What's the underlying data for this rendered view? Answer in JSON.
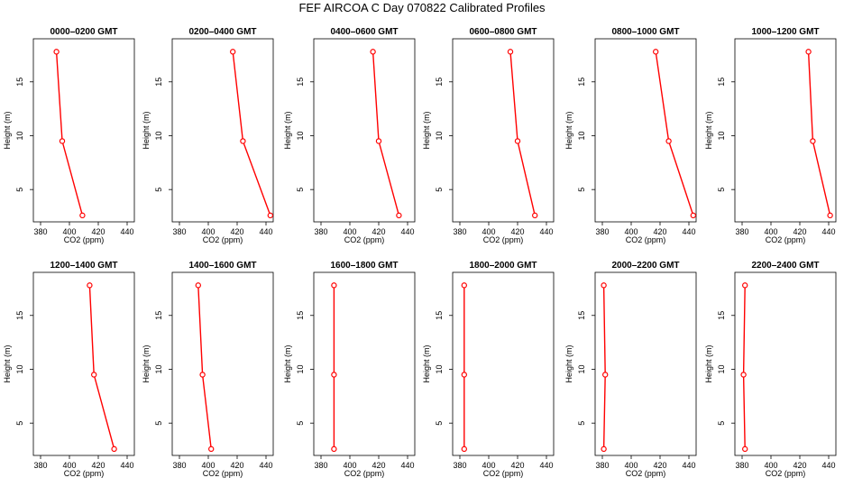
{
  "figure": {
    "title": "FEF AIRCOA C  Day 070822  Calibrated Profiles"
  },
  "chart_data": [
    {
      "type": "line",
      "title": "0000–0200 GMT",
      "xlabel": "CO2 (ppm)",
      "ylabel": "Height (m)",
      "xlim": [
        375,
        445
      ],
      "ylim": [
        2,
        19
      ],
      "xticks": [
        380,
        400,
        420,
        440
      ],
      "yticks": [
        5,
        10,
        15
      ],
      "color": "#ff0000",
      "points": [
        {
          "x": 391,
          "y": 17.8
        },
        {
          "x": 395,
          "y": 9.5
        },
        {
          "x": 409,
          "y": 2.6
        }
      ]
    },
    {
      "type": "line",
      "title": "0200–0400 GMT",
      "xlabel": "CO2 (ppm)",
      "ylabel": "Height (m)",
      "xlim": [
        375,
        445
      ],
      "ylim": [
        2,
        19
      ],
      "xticks": [
        380,
        400,
        420,
        440
      ],
      "yticks": [
        5,
        10,
        15
      ],
      "color": "#ff0000",
      "points": [
        {
          "x": 417,
          "y": 17.8
        },
        {
          "x": 424,
          "y": 9.5
        },
        {
          "x": 443,
          "y": 2.6
        }
      ]
    },
    {
      "type": "line",
      "title": "0400–0600 GMT",
      "xlabel": "CO2 (ppm)",
      "ylabel": "Height (m)",
      "xlim": [
        375,
        445
      ],
      "ylim": [
        2,
        19
      ],
      "xticks": [
        380,
        400,
        420,
        440
      ],
      "yticks": [
        5,
        10,
        15
      ],
      "color": "#ff0000",
      "points": [
        {
          "x": 416,
          "y": 17.8
        },
        {
          "x": 420,
          "y": 9.5
        },
        {
          "x": 434,
          "y": 2.6
        }
      ]
    },
    {
      "type": "line",
      "title": "0600–0800 GMT",
      "xlabel": "CO2 (ppm)",
      "ylabel": "Height (m)",
      "xlim": [
        375,
        445
      ],
      "ylim": [
        2,
        19
      ],
      "xticks": [
        380,
        400,
        420,
        440
      ],
      "yticks": [
        5,
        10,
        15
      ],
      "color": "#ff0000",
      "points": [
        {
          "x": 415,
          "y": 17.8
        },
        {
          "x": 420,
          "y": 9.5
        },
        {
          "x": 432,
          "y": 2.6
        }
      ]
    },
    {
      "type": "line",
      "title": "0800–1000 GMT",
      "xlabel": "CO2 (ppm)",
      "ylabel": "Height (m)",
      "xlim": [
        375,
        445
      ],
      "ylim": [
        2,
        19
      ],
      "xticks": [
        380,
        400,
        420,
        440
      ],
      "yticks": [
        5,
        10,
        15
      ],
      "color": "#ff0000",
      "points": [
        {
          "x": 417,
          "y": 17.8
        },
        {
          "x": 426,
          "y": 9.5
        },
        {
          "x": 443,
          "y": 2.6
        }
      ]
    },
    {
      "type": "line",
      "title": "1000–1200 GMT",
      "xlabel": "CO2 (ppm)",
      "ylabel": "Height (m)",
      "xlim": [
        375,
        445
      ],
      "ylim": [
        2,
        19
      ],
      "xticks": [
        380,
        400,
        420,
        440
      ],
      "yticks": [
        5,
        10,
        15
      ],
      "color": "#ff0000",
      "points": [
        {
          "x": 426,
          "y": 17.8
        },
        {
          "x": 429,
          "y": 9.5
        },
        {
          "x": 441,
          "y": 2.6
        }
      ]
    },
    {
      "type": "line",
      "title": "1200–1400 GMT",
      "xlabel": "CO2 (ppm)",
      "ylabel": "Height (m)",
      "xlim": [
        375,
        445
      ],
      "ylim": [
        2,
        19
      ],
      "xticks": [
        380,
        400,
        420,
        440
      ],
      "yticks": [
        5,
        10,
        15
      ],
      "color": "#ff0000",
      "points": [
        {
          "x": 414,
          "y": 17.8
        },
        {
          "x": 417,
          "y": 9.5
        },
        {
          "x": 431,
          "y": 2.6
        }
      ]
    },
    {
      "type": "line",
      "title": "1400–1600 GMT",
      "xlabel": "CO2 (ppm)",
      "ylabel": "Height (m)",
      "xlim": [
        375,
        445
      ],
      "ylim": [
        2,
        19
      ],
      "xticks": [
        380,
        400,
        420,
        440
      ],
      "yticks": [
        5,
        10,
        15
      ],
      "color": "#ff0000",
      "points": [
        {
          "x": 393,
          "y": 17.8
        },
        {
          "x": 396,
          "y": 9.5
        },
        {
          "x": 402,
          "y": 2.6
        }
      ]
    },
    {
      "type": "line",
      "title": "1600–1800 GMT",
      "xlabel": "CO2 (ppm)",
      "ylabel": "Height (m)",
      "xlim": [
        375,
        445
      ],
      "ylim": [
        2,
        19
      ],
      "xticks": [
        380,
        400,
        420,
        440
      ],
      "yticks": [
        5,
        10,
        15
      ],
      "color": "#ff0000",
      "points": [
        {
          "x": 389,
          "y": 17.8
        },
        {
          "x": 389,
          "y": 9.5
        },
        {
          "x": 389,
          "y": 2.6
        }
      ]
    },
    {
      "type": "line",
      "title": "1800–2000 GMT",
      "xlabel": "CO2 (ppm)",
      "ylabel": "Height (m)",
      "xlim": [
        375,
        445
      ],
      "ylim": [
        2,
        19
      ],
      "xticks": [
        380,
        400,
        420,
        440
      ],
      "yticks": [
        5,
        10,
        15
      ],
      "color": "#ff0000",
      "points": [
        {
          "x": 383,
          "y": 17.8
        },
        {
          "x": 383,
          "y": 9.5
        },
        {
          "x": 383,
          "y": 2.6
        }
      ]
    },
    {
      "type": "line",
      "title": "2000–2200 GMT",
      "xlabel": "CO2 (ppm)",
      "ylabel": "Height (m)",
      "xlim": [
        375,
        445
      ],
      "ylim": [
        2,
        19
      ],
      "xticks": [
        380,
        400,
        420,
        440
      ],
      "yticks": [
        5,
        10,
        15
      ],
      "color": "#ff0000",
      "points": [
        {
          "x": 381,
          "y": 17.8
        },
        {
          "x": 382,
          "y": 9.5
        },
        {
          "x": 381,
          "y": 2.6
        }
      ]
    },
    {
      "type": "line",
      "title": "2200–2400 GMT",
      "xlabel": "CO2 (ppm)",
      "ylabel": "Height (m)",
      "xlim": [
        375,
        445
      ],
      "ylim": [
        2,
        19
      ],
      "xticks": [
        380,
        400,
        420,
        440
      ],
      "yticks": [
        5,
        10,
        15
      ],
      "color": "#ff0000",
      "points": [
        {
          "x": 382,
          "y": 17.8
        },
        {
          "x": 381,
          "y": 9.5
        },
        {
          "x": 382,
          "y": 2.6
        }
      ]
    }
  ]
}
